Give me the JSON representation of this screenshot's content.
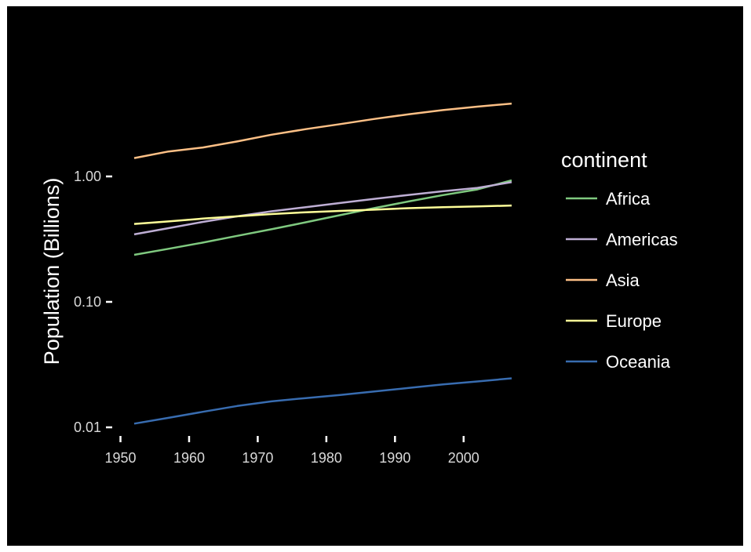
{
  "chart_data": {
    "type": "line",
    "title": "",
    "xlabel": "",
    "ylabel": "Population (Billions)",
    "y_scale": "log",
    "xlim": [
      1952,
      2007
    ],
    "ylim": [
      0.008,
      5.5
    ],
    "x_ticks": [
      "1950",
      "1960",
      "1970",
      "1980",
      "1990",
      "2000"
    ],
    "y_ticks": [
      "0.01",
      "0.10",
      "1.00"
    ],
    "grid": false,
    "legend": {
      "title": "continent",
      "placement": "right"
    },
    "x": [
      1952,
      1957,
      1962,
      1967,
      1972,
      1977,
      1982,
      1987,
      1992,
      1997,
      2002,
      2007
    ],
    "series": [
      {
        "name": "Africa",
        "color": "#7fc97f",
        "values": [
          0.237,
          0.265,
          0.297,
          0.336,
          0.379,
          0.431,
          0.491,
          0.559,
          0.632,
          0.71,
          0.788,
          0.93
        ]
      },
      {
        "name": "Americas",
        "color": "#beaed4",
        "values": [
          0.345,
          0.387,
          0.434,
          0.481,
          0.527,
          0.569,
          0.614,
          0.663,
          0.712,
          0.762,
          0.81,
          0.9
        ]
      },
      {
        "name": "Asia",
        "color": "#fdc086",
        "values": [
          1.4,
          1.58,
          1.7,
          1.9,
          2.15,
          2.38,
          2.61,
          2.87,
          3.13,
          3.38,
          3.6,
          3.81
        ]
      },
      {
        "name": "Europe",
        "color": "#ffff99",
        "values": [
          0.418,
          0.438,
          0.461,
          0.481,
          0.501,
          0.518,
          0.531,
          0.543,
          0.558,
          0.569,
          0.576,
          0.586
        ]
      },
      {
        "name": "Oceania",
        "color": "#386cb0",
        "values": [
          0.0107,
          0.0119,
          0.0133,
          0.0148,
          0.0161,
          0.0171,
          0.0181,
          0.0193,
          0.0206,
          0.022,
          0.0232,
          0.0246
        ]
      }
    ]
  }
}
